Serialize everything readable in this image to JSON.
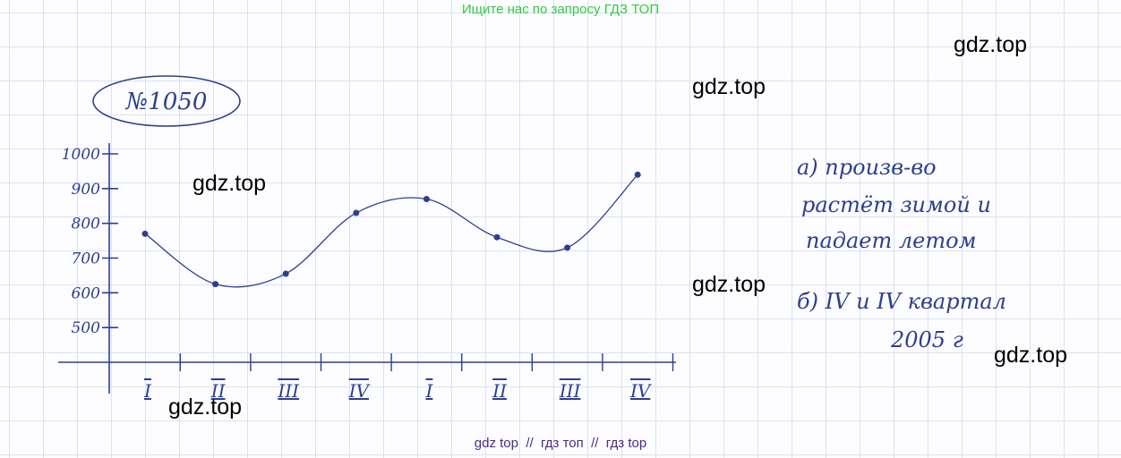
{
  "header": {
    "text": "Ищите нас по запросу ГДЗ ТОП"
  },
  "problem_number": "№1050",
  "chart_data": {
    "type": "line",
    "categories": [
      "I",
      "II",
      "III",
      "IV",
      "I",
      "II",
      "III",
      "IV"
    ],
    "values": [
      770,
      625,
      655,
      830,
      870,
      760,
      730,
      940
    ],
    "ylim": [
      400,
      1000
    ],
    "yticks": [
      500,
      600,
      700,
      800,
      900,
      1000
    ],
    "color": "#2c3f8f"
  },
  "notes": {
    "a": [
      "а) произв-во",
      "растёт зимой и",
      "падает летом"
    ],
    "b": [
      "б) IV и IV квартал",
      "2005 г"
    ]
  },
  "watermarks": [
    "gdz.top",
    "gdz.top",
    "gdz.top",
    "gdz.top",
    "gdz.top",
    "gdz.top"
  ],
  "footer": {
    "text": "gdz top  //  гдз топ  //  гдз top"
  }
}
